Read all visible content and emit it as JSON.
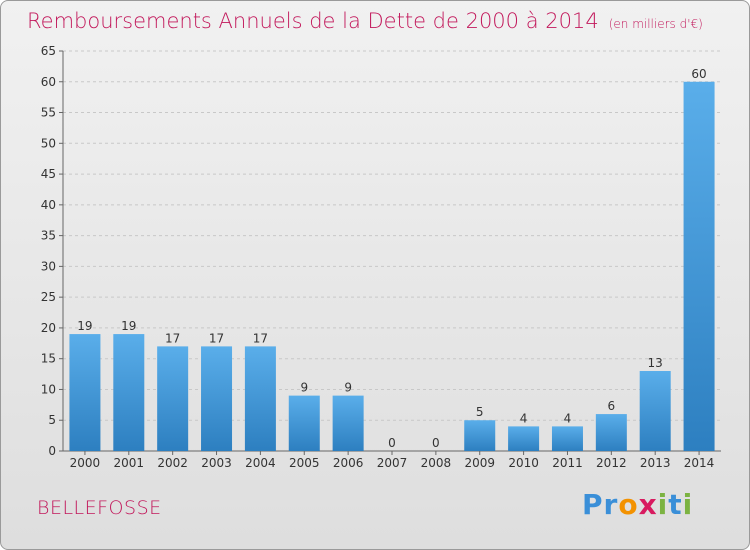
{
  "header": {
    "title": "Remboursements Annuels de la Dette de 2000 à 2014",
    "unit": "(en milliers d'€)"
  },
  "footer": {
    "commune": "BELLEFOSSE",
    "logo": {
      "text": "Proxiti",
      "letters": [
        {
          "ch": "P",
          "color": "#3a8fd8"
        },
        {
          "ch": "r",
          "color": "#3a8fd8"
        },
        {
          "ch": "o",
          "color": "#f39200"
        },
        {
          "ch": "x",
          "color": "#d81b60"
        },
        {
          "ch": "i",
          "color": "#7cb342"
        },
        {
          "ch": "t",
          "color": "#3a8fd8"
        },
        {
          "ch": "i",
          "color": "#7cb342"
        }
      ]
    }
  },
  "colors": {
    "title": "#c2185b",
    "bar_top": "#5aaeea",
    "bar_bottom": "#2d7fc0",
    "grid": "#c8c8c8",
    "text": "#333333"
  },
  "chart_data": {
    "type": "bar",
    "categories": [
      "2000",
      "2001",
      "2002",
      "2003",
      "2004",
      "2005",
      "2006",
      "2007",
      "2008",
      "2009",
      "2010",
      "2011",
      "2012",
      "2013",
      "2014"
    ],
    "values": [
      19,
      19,
      17,
      17,
      17,
      9,
      9,
      0,
      0,
      5,
      4,
      4,
      6,
      13,
      60
    ],
    "ylim": [
      0,
      65
    ],
    "yticks": [
      0,
      5,
      10,
      15,
      20,
      25,
      30,
      35,
      40,
      45,
      50,
      55,
      60,
      65
    ],
    "grid": true,
    "data_labels": true
  }
}
